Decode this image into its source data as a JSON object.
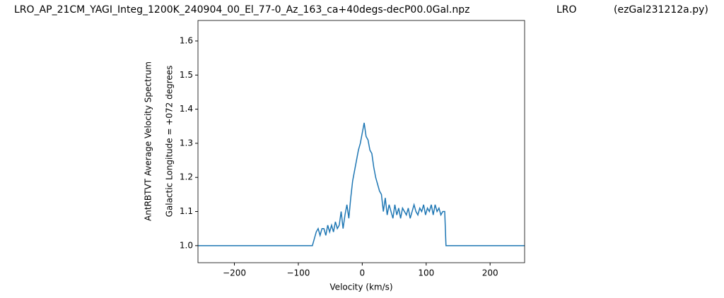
{
  "chart_data": {
    "type": "line",
    "titles": [
      "LRO_AP_21CM_YAGI_Integ_1200K_240904_00_El_77-0_Az_163_ca+40degs-decP00.0Gal.npz",
      "LRO",
      "(ezGal231212a.py)"
    ],
    "ylabel": [
      "AntRBTVT Average Velocity Spectrum",
      "Galactic Longitude = +072 degrees"
    ],
    "xlabel": "Velocity (km/s)",
    "color": "#1f77b4",
    "x": [
      -257,
      -78,
      -75,
      -72,
      -69,
      -66,
      -63,
      -60,
      -57,
      -54,
      -51,
      -48,
      -45,
      -42,
      -39,
      -36,
      -33,
      -30,
      -27,
      -24,
      -21,
      -18,
      -15,
      -12,
      -9,
      -6,
      -3,
      0,
      3,
      6,
      9,
      12,
      15,
      18,
      21,
      24,
      27,
      30,
      33,
      36,
      39,
      42,
      45,
      48,
      51,
      54,
      57,
      60,
      63,
      66,
      69,
      72,
      75,
      78,
      81,
      84,
      87,
      90,
      93,
      96,
      99,
      102,
      105,
      108,
      111,
      114,
      117,
      120,
      123,
      126,
      129,
      131,
      254
    ],
    "values": [
      1.0,
      1.0,
      1.02,
      1.04,
      1.05,
      1.03,
      1.05,
      1.05,
      1.03,
      1.06,
      1.04,
      1.06,
      1.04,
      1.07,
      1.05,
      1.06,
      1.1,
      1.05,
      1.09,
      1.12,
      1.08,
      1.14,
      1.19,
      1.22,
      1.25,
      1.28,
      1.3,
      1.33,
      1.36,
      1.32,
      1.31,
      1.28,
      1.27,
      1.23,
      1.2,
      1.18,
      1.16,
      1.15,
      1.1,
      1.14,
      1.09,
      1.12,
      1.1,
      1.08,
      1.12,
      1.09,
      1.11,
      1.08,
      1.11,
      1.1,
      1.09,
      1.11,
      1.08,
      1.1,
      1.12,
      1.1,
      1.09,
      1.11,
      1.1,
      1.12,
      1.09,
      1.11,
      1.1,
      1.12,
      1.09,
      1.12,
      1.1,
      1.11,
      1.09,
      1.1,
      1.1,
      1.0,
      1.0
    ],
    "xlim": [
      -257,
      254
    ],
    "ylim": [
      0.95,
      1.66
    ],
    "xticks": [
      {
        "value": -200,
        "label": "−200"
      },
      {
        "value": -100,
        "label": "−100"
      },
      0,
      100,
      200
    ],
    "yticks": [
      {
        "value": 1,
        "label": "1.0"
      },
      1.1,
      1.2,
      1.3,
      1.4,
      1.5,
      1.6
    ]
  }
}
